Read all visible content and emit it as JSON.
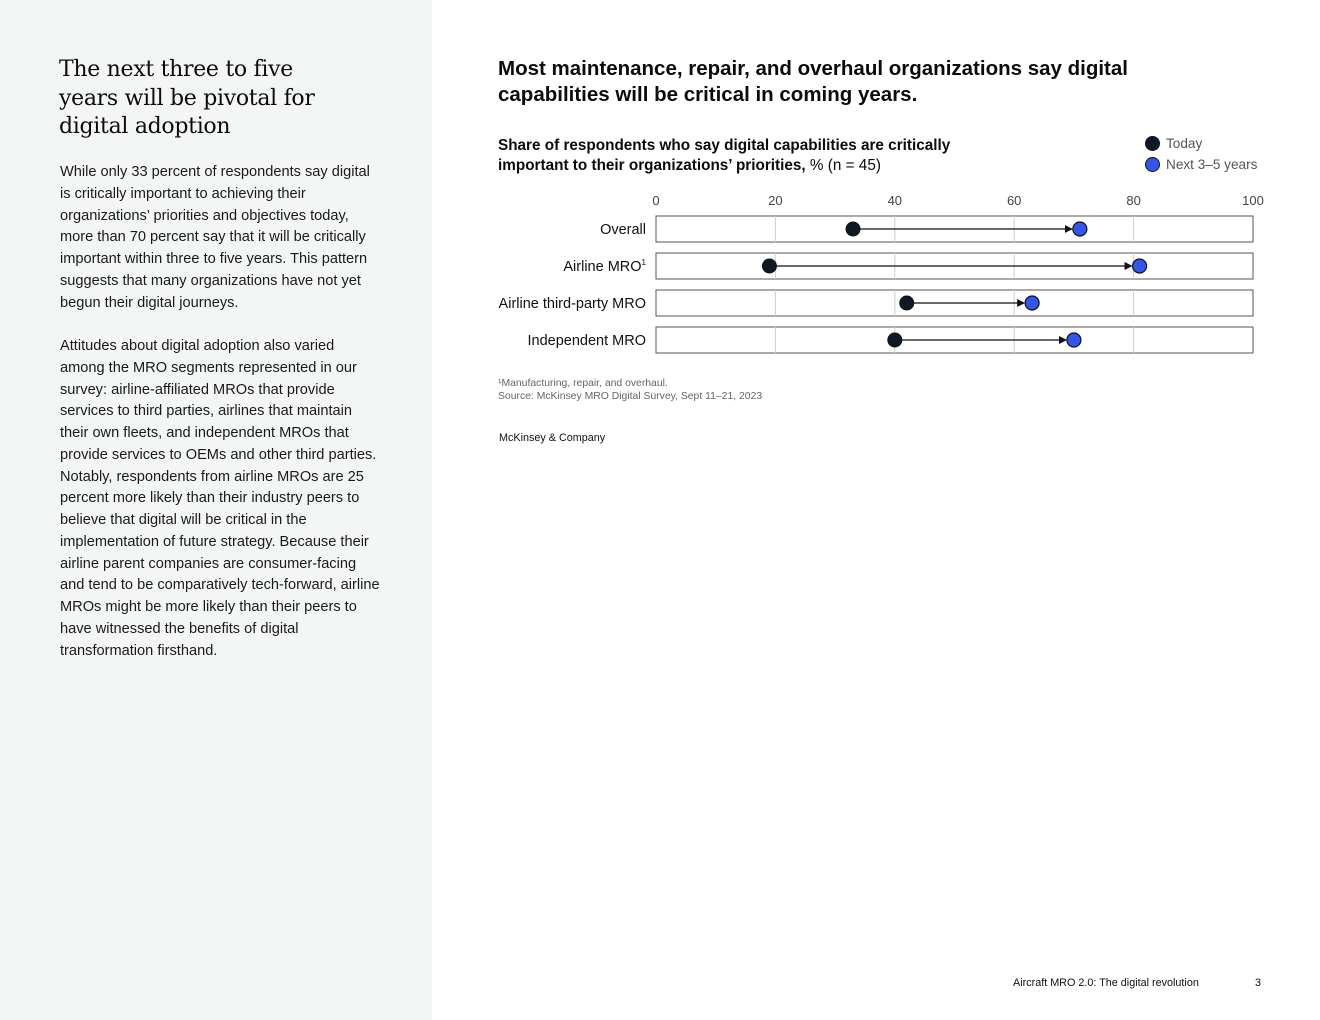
{
  "sidebar": {
    "title": "The next three to five years will be pivotal for digital adoption",
    "paragraphs": [
      "While only 33 percent of respondents say digital is critically important to achieving their organizations’ priorities and objectives today, more than 70 percent say that it will be critically important within three to five years. This pattern suggests that many organizations have not yet begun their digital journeys.",
      "Attitudes about digital adoption also varied among the MRO segments represented in our survey: airline-affiliated MROs that provide services to third parties, airlines that maintain their own fleets, and independent MROs that provide services to OEMs and other third parties. Notably, respondents from airline MROs are 25 percent more likely than their industry peers to believe that digital will be critical in the implementation of future strategy. Because their airline parent companies are consumer-facing and tend to be comparatively tech-forward, airline MROs might be more likely than their peers to have witnessed the benefits of digital transformation firsthand."
    ]
  },
  "main": {
    "title": "Most maintenance, repair, and overhaul organizations say digital capabilities will be critical in coming years.",
    "subtitle_bold": "Share of respondents who say digital capabilities are critically important to their organizations’ priorities,",
    "subtitle_rest": " % (n = 45)"
  },
  "legend": {
    "today": "Today",
    "next": "Next 3–5 years"
  },
  "colors": {
    "today": "#0f1923",
    "next": "#3355ee"
  },
  "chart_data": {
    "type": "dumbbell",
    "xlim": [
      0,
      100
    ],
    "xticks": [
      "0",
      "20",
      "40",
      "60",
      "80",
      "100"
    ],
    "categories": [
      "Overall",
      "Airline MRO",
      "Airline third-party MRO",
      "Independent MRO"
    ],
    "category_superscripts": [
      "",
      "1",
      "",
      ""
    ],
    "series": [
      {
        "name": "Today",
        "values": [
          33,
          19,
          42,
          40
        ]
      },
      {
        "name": "Next 3–5 years",
        "values": [
          71,
          81,
          63,
          70
        ]
      }
    ]
  },
  "footnotes": {
    "note": "¹Manufacturing, repair, and overhaul.",
    "source": "Source: McKinsey MRO Digital Survey, Sept 11–21, 2023"
  },
  "brand": "McKinsey & Company",
  "footer": {
    "title": "Aircraft MRO 2.0: The digital revolution",
    "page": "3"
  }
}
